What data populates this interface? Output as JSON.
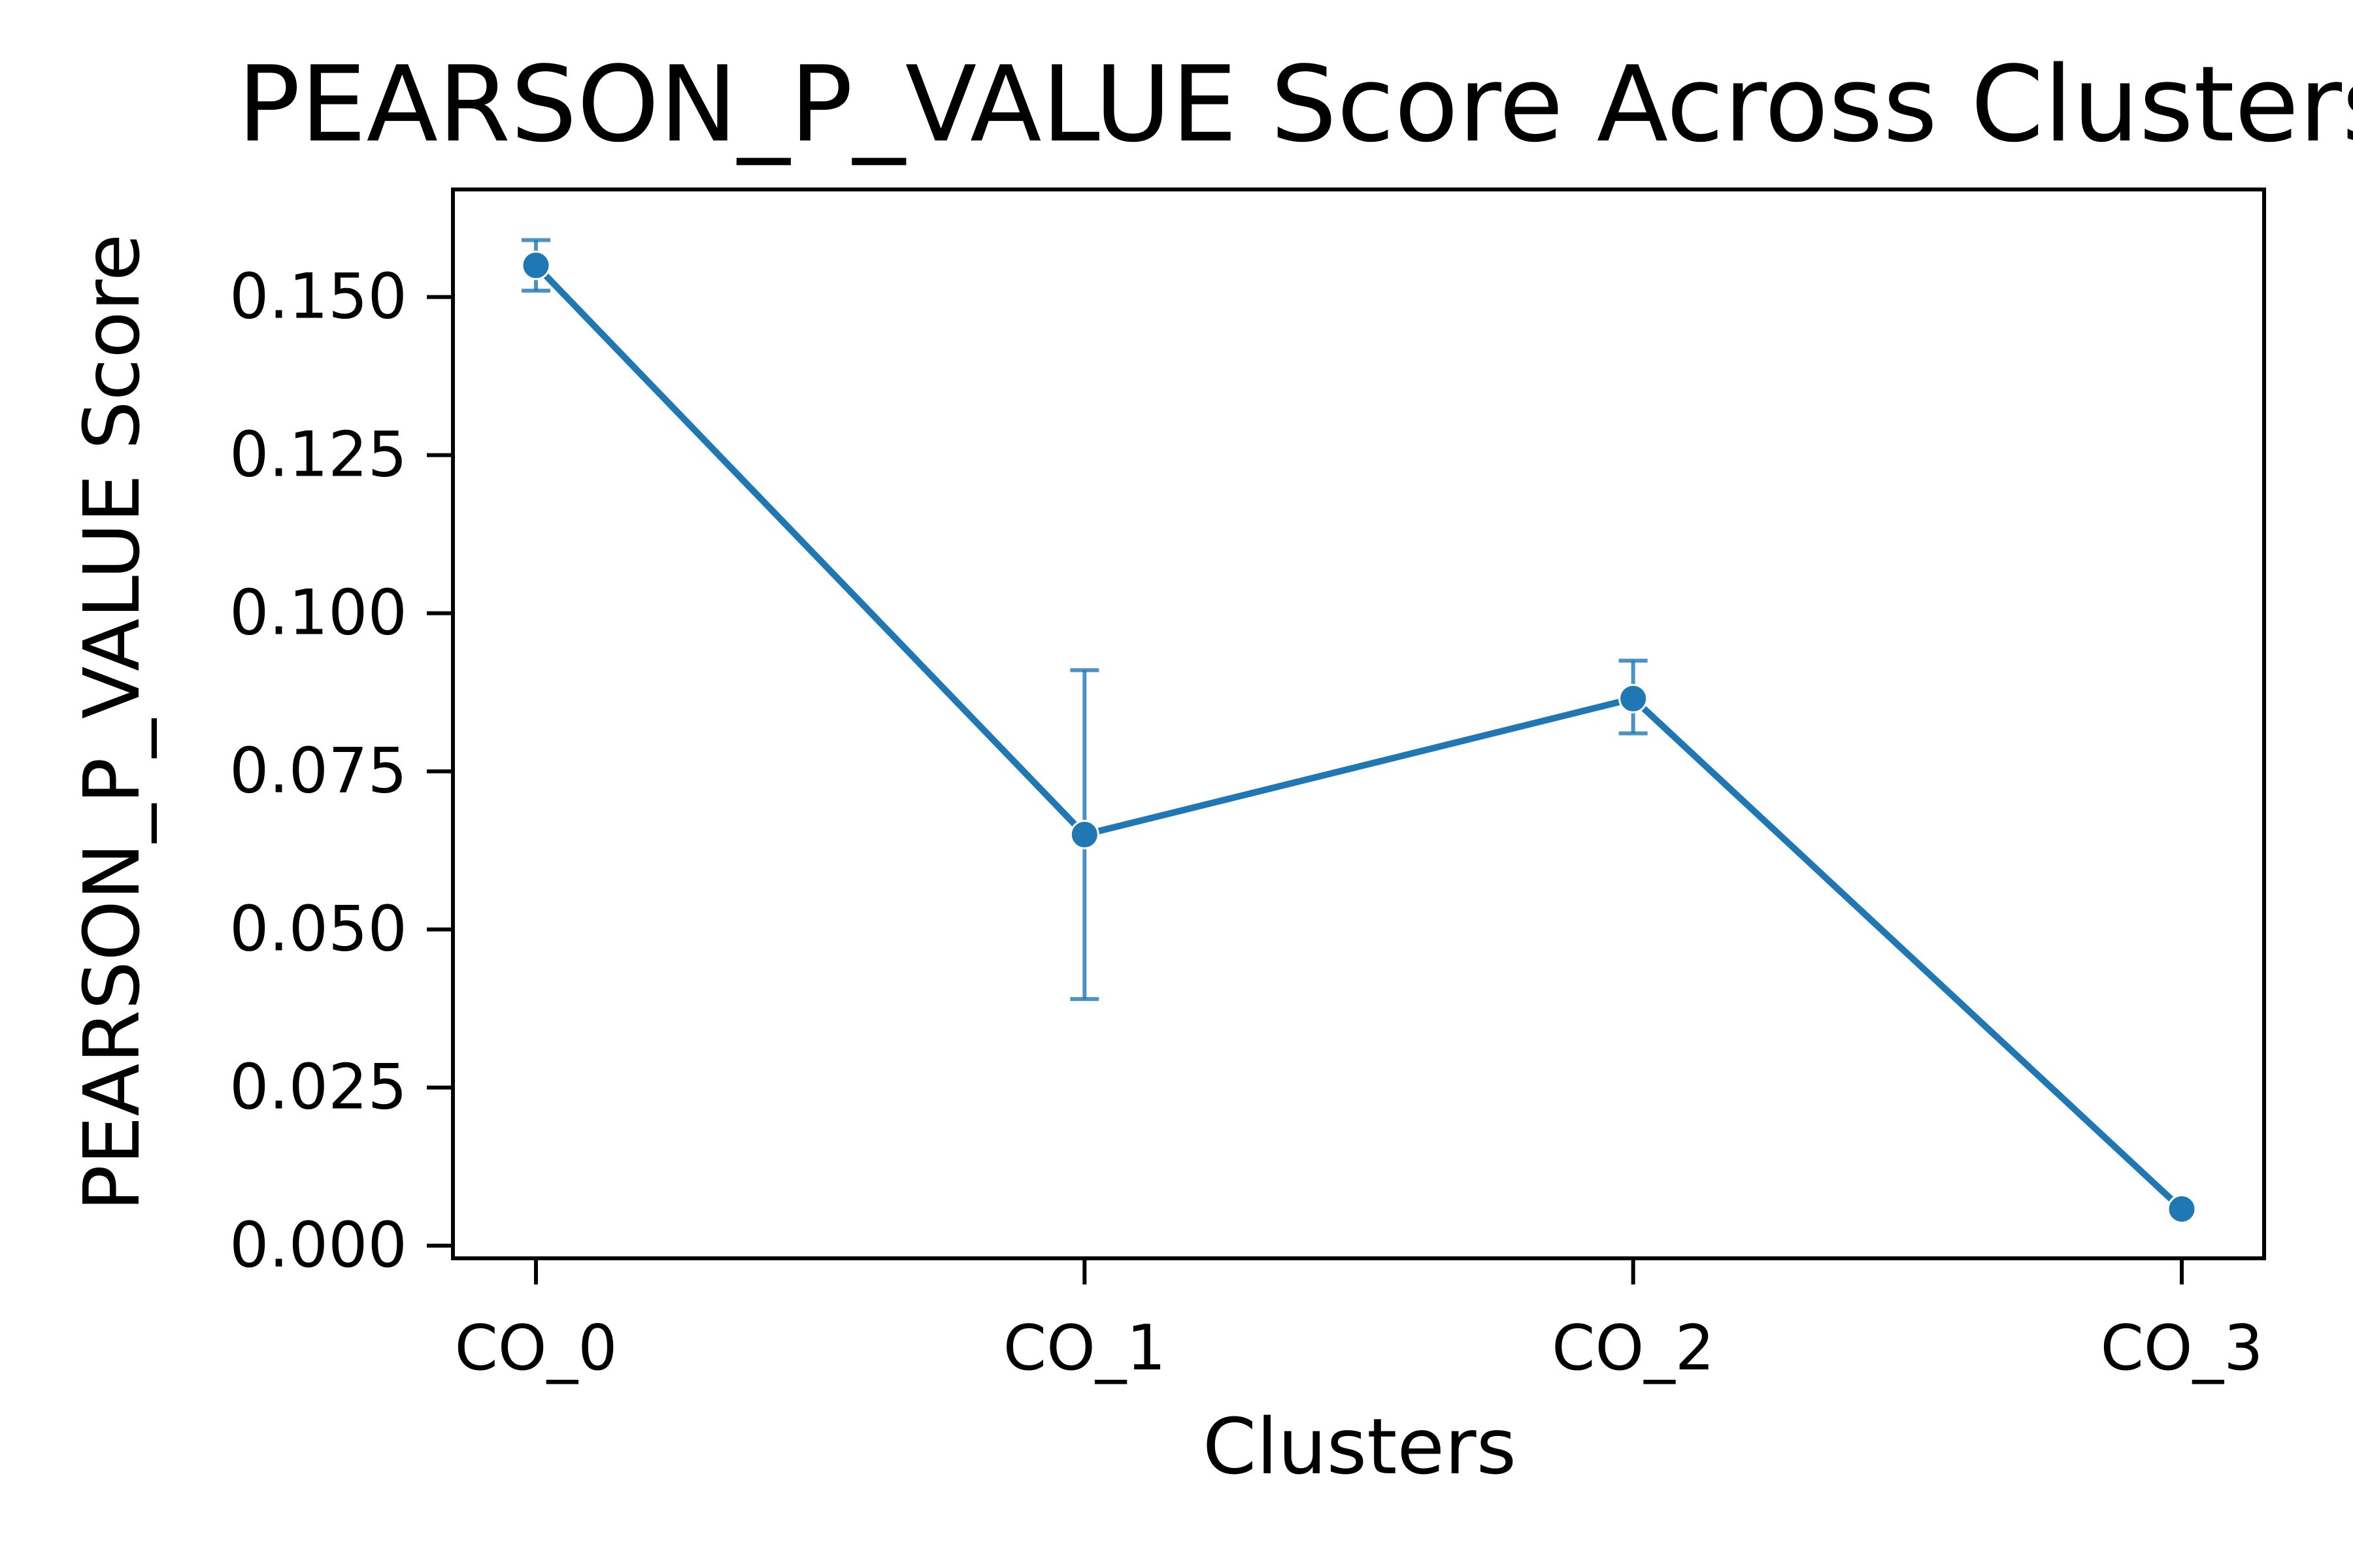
{
  "chart_data": {
    "type": "line",
    "title": "PEARSON_P_VALUE Score Across Clusters",
    "xlabel": "Clusters",
    "ylabel": "PEARSON_P_VALUE Score",
    "categories": [
      "CO_0",
      "CO_1",
      "CO_2",
      "CO_3"
    ],
    "series": [
      {
        "values": [
          0.155,
          0.065,
          0.0865,
          0.0058
        ],
        "error": [
          [
            0.151,
            0.159
          ],
          [
            0.039,
            0.091
          ],
          [
            0.081,
            0.0925
          ],
          [
            0.0058,
            0.0058
          ]
        ],
        "color": "#1f77b4"
      }
    ],
    "ylim": [
      -0.002,
      0.167
    ],
    "yticks": [
      {
        "value": 0.0,
        "label": "0.000"
      },
      {
        "value": 0.025,
        "label": "0.025"
      },
      {
        "value": 0.05,
        "label": "0.050"
      },
      {
        "value": 0.075,
        "label": "0.075"
      },
      {
        "value": 0.1,
        "label": "0.100"
      },
      {
        "value": 0.125,
        "label": "0.125"
      },
      {
        "value": 0.15,
        "label": "0.150"
      }
    ],
    "grid": false,
    "legend": "none"
  }
}
